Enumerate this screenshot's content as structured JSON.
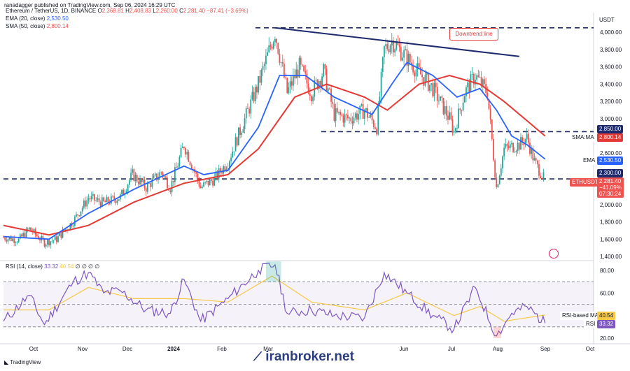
{
  "header": {
    "published": "ranadagger published on TradingView.com, Sep 06, 2024 16:29 UTC",
    "symbol": "Ethereum / TetherUS, 1D, BINANCE",
    "o_label": "O",
    "o": "2,368.81",
    "h_label": "H",
    "h": "2,408.83",
    "l_label": "L",
    "l": "2,260.00",
    "c_label": "C",
    "c": "2,281.40",
    "change": "−87.41 (−3.69%)",
    "ema_label": "EMA (20, close)",
    "ema_value": "2,530.50",
    "sma_label": "SMA (50, close)",
    "sma_value": "2,800.14",
    "currency": "USDT"
  },
  "rsi_header": {
    "label": "RSI (14, close)",
    "rsi": "33.32",
    "rsi_ma": "40.54",
    "extras": "∅ ∅ ∅ ∅"
  },
  "annotations": {
    "downtrend": "Downtrend line"
  },
  "price_tags": {
    "level_2850": "2,850.00",
    "sma_tag_label": "SMA:MA",
    "sma_tag_value": "2,800.14",
    "ema_tag_label": "EMA",
    "ema_tag_value": "2,530.50",
    "level_2300": "2,300.00",
    "eth_label": "ETHUSDT",
    "eth_price": "2,281.40",
    "eth_change": "−41.09%",
    "eth_time": "07:30:24"
  },
  "rsi_tags": {
    "ma_label": "RSI-based MA",
    "ma_value": "40.54",
    "rsi_label": "RSI",
    "rsi_value": "33.32"
  },
  "footer": {
    "logo": "TradingView",
    "watermark": "iranbroker.net"
  },
  "colors": {
    "up": "#26a69a",
    "down": "#ef5350",
    "ema": "#2962ff",
    "sma": "#e53935",
    "rsi": "#7e57c2",
    "rsi_ma": "#f7c948",
    "level": "#1e2a6e",
    "trendline": "#1e2a6e"
  },
  "chart_data": [
    {
      "type": "candlestick",
      "title": "Ethereum / TetherUS, 1D, BINANCE",
      "y_axis": {
        "ticks": [
          4000,
          3800,
          3600,
          3400,
          3200,
          3000,
          2600,
          2000,
          1800,
          1600,
          1400
        ],
        "tick_labels": [
          "4,000.00",
          "3,800.00",
          "3,600.00",
          "3,400.00",
          "3,200.00",
          "3,000.00",
          "2,600.00",
          "2,000.00",
          "1,800.00",
          "1,600.00",
          "1,400.00"
        ],
        "unit": "USDT"
      },
      "x_axis": {
        "labels": [
          "Oct",
          "Nov",
          "Dec",
          "2024",
          "Feb",
          "Mar",
          "Jun",
          "Jul",
          "Aug",
          "Sep",
          "Oct"
        ]
      },
      "price_path": [
        [
          "2023-09-15",
          1620
        ],
        [
          "2023-09-25",
          1590
        ],
        [
          "2023-10-02",
          1720
        ],
        [
          "2023-10-12",
          1560
        ],
        [
          "2023-10-20",
          1600
        ],
        [
          "2023-10-31",
          1810
        ],
        [
          "2023-11-10",
          2080
        ],
        [
          "2023-11-20",
          2020
        ],
        [
          "2023-12-01",
          2090
        ],
        [
          "2023-12-09",
          2350
        ],
        [
          "2023-12-18",
          2200
        ],
        [
          "2023-12-28",
          2380
        ],
        [
          "2024-01-03",
          2200
        ],
        [
          "2024-01-12",
          2700
        ],
        [
          "2024-01-23",
          2200
        ],
        [
          "2024-02-01",
          2300
        ],
        [
          "2024-02-10",
          2500
        ],
        [
          "2024-02-20",
          2950
        ],
        [
          "2024-03-01",
          3400
        ],
        [
          "2024-03-12",
          4000
        ],
        [
          "2024-03-20",
          3300
        ],
        [
          "2024-03-28",
          3600
        ],
        [
          "2024-04-05",
          3300
        ],
        [
          "2024-04-13",
          3550
        ],
        [
          "2024-04-20",
          3050
        ],
        [
          "2024-04-30",
          3000
        ],
        [
          "2024-05-10",
          3100
        ],
        [
          "2024-05-18",
          2900
        ],
        [
          "2024-05-23",
          3800
        ],
        [
          "2024-05-28",
          3900
        ],
        [
          "2024-06-07",
          3700
        ],
        [
          "2024-06-14",
          3550
        ],
        [
          "2024-06-24",
          3350
        ],
        [
          "2024-07-05",
          3000
        ],
        [
          "2024-07-08",
          2850
        ],
        [
          "2024-07-15",
          3300
        ],
        [
          "2024-07-22",
          3500
        ],
        [
          "2024-07-30",
          3300
        ],
        [
          "2024-08-05",
          2200
        ],
        [
          "2024-08-10",
          2650
        ],
        [
          "2024-08-20",
          2700
        ],
        [
          "2024-08-25",
          2780
        ],
        [
          "2024-08-30",
          2500
        ],
        [
          "2024-09-06",
          2281
        ]
      ],
      "ema20": [
        [
          "2023-09-15",
          1630
        ],
        [
          "2023-10-15",
          1600
        ],
        [
          "2023-11-10",
          1900
        ],
        [
          "2023-12-10",
          2180
        ],
        [
          "2024-01-12",
          2450
        ],
        [
          "2024-01-25",
          2350
        ],
        [
          "2024-02-10",
          2400
        ],
        [
          "2024-03-01",
          2900
        ],
        [
          "2024-03-15",
          3500
        ],
        [
          "2024-04-01",
          3500
        ],
        [
          "2024-04-20",
          3250
        ],
        [
          "2024-05-15",
          3050
        ],
        [
          "2024-05-28",
          3400
        ],
        [
          "2024-06-07",
          3650
        ],
        [
          "2024-06-24",
          3500
        ],
        [
          "2024-07-10",
          3250
        ],
        [
          "2024-07-25",
          3350
        ],
        [
          "2024-08-05",
          3100
        ],
        [
          "2024-08-15",
          2800
        ],
        [
          "2024-08-25",
          2700
        ],
        [
          "2024-09-06",
          2530.5
        ]
      ],
      "sma50": [
        [
          "2023-09-15",
          1760
        ],
        [
          "2023-10-15",
          1650
        ],
        [
          "2023-11-10",
          1760
        ],
        [
          "2023-12-10",
          2030
        ],
        [
          "2024-01-12",
          2250
        ],
        [
          "2024-02-10",
          2350
        ],
        [
          "2024-03-01",
          2650
        ],
        [
          "2024-03-25",
          3250
        ],
        [
          "2024-04-15",
          3400
        ],
        [
          "2024-05-10",
          3250
        ],
        [
          "2024-05-25",
          3100
        ],
        [
          "2024-06-15",
          3400
        ],
        [
          "2024-07-05",
          3500
        ],
        [
          "2024-07-25",
          3400
        ],
        [
          "2024-08-10",
          3200
        ],
        [
          "2024-09-06",
          2800.14
        ]
      ],
      "levels": [
        2850,
        2300,
        4050
      ],
      "downtrend_line": [
        [
          "2024-03-12",
          4050
        ],
        [
          "2024-08-20",
          3720
        ]
      ]
    },
    {
      "type": "line",
      "title": "RSI (14, close)",
      "y_axis": {
        "ticks": [
          80,
          60,
          40,
          20
        ],
        "tick_labels": [
          "80.00",
          "60.00",
          "40.00",
          "20.00"
        ],
        "band": [
          30,
          70
        ]
      },
      "rsi": [
        [
          "2023-09-15",
          35
        ],
        [
          "2023-10-02",
          58
        ],
        [
          "2023-10-12",
          32
        ],
        [
          "2023-10-31",
          70
        ],
        [
          "2023-11-10",
          78
        ],
        [
          "2023-11-20",
          60
        ],
        [
          "2023-12-01",
          62
        ],
        [
          "2023-12-18",
          45
        ],
        [
          "2024-01-03",
          42
        ],
        [
          "2024-01-12",
          72
        ],
        [
          "2024-01-23",
          35
        ],
        [
          "2024-02-10",
          55
        ],
        [
          "2024-03-01",
          80
        ],
        [
          "2024-03-12",
          85
        ],
        [
          "2024-03-20",
          42
        ],
        [
          "2024-04-05",
          45
        ],
        [
          "2024-04-20",
          40
        ],
        [
          "2024-05-10",
          38
        ],
        [
          "2024-05-23",
          78
        ],
        [
          "2024-06-07",
          60
        ],
        [
          "2024-06-24",
          40
        ],
        [
          "2024-07-08",
          28
        ],
        [
          "2024-07-22",
          65
        ],
        [
          "2024-08-05",
          22
        ],
        [
          "2024-08-15",
          42
        ],
        [
          "2024-08-25",
          48
        ],
        [
          "2024-09-06",
          33.32
        ]
      ],
      "rsi_ma": [
        [
          "2023-09-15",
          45
        ],
        [
          "2023-10-15",
          45
        ],
        [
          "2023-11-10",
          65
        ],
        [
          "2023-12-10",
          55
        ],
        [
          "2024-01-12",
          55
        ],
        [
          "2024-02-10",
          52
        ],
        [
          "2024-03-10",
          75
        ],
        [
          "2024-04-05",
          52
        ],
        [
          "2024-05-10",
          45
        ],
        [
          "2024-06-07",
          60
        ],
        [
          "2024-07-08",
          40
        ],
        [
          "2024-07-25",
          48
        ],
        [
          "2024-08-10",
          35
        ],
        [
          "2024-09-06",
          40.54
        ]
      ]
    }
  ]
}
